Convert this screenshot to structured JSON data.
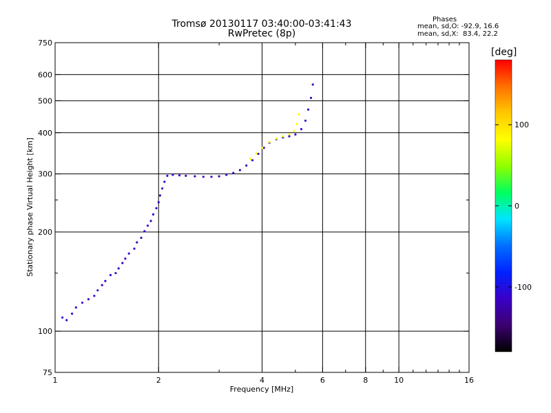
{
  "header": {
    "title_line1": "Tromsø 20130117 03:40:00-03:41:43",
    "title_line2": "RwPretec (8p)"
  },
  "phases": {
    "title": "Phases",
    "o_line": "mean, sd,O: -92.9, 16.6",
    "x_line": "mean, sd,X:  83.4, 22.2"
  },
  "colorbar": {
    "unit": "[deg]",
    "ticks": [
      "100",
      "0",
      "-100"
    ],
    "tick_values": [
      100,
      0,
      -100
    ],
    "range": [
      -180,
      180
    ],
    "stops": [
      "#000000",
      "#3c0070",
      "#3a00c8",
      "#0022ff",
      "#0070ff",
      "#00e5ff",
      "#00ff60",
      "#90ff00",
      "#ffff00",
      "#ffc800",
      "#ff7000",
      "#ff0000"
    ]
  },
  "chart_data": {
    "type": "scatter",
    "xlabel": "Frequency [MHz]",
    "ylabel": "Stationary phase Virtual Height [km]",
    "xscale": "log",
    "yscale": "log",
    "xlim": [
      1,
      16
    ],
    "ylim": [
      75,
      750
    ],
    "xticks": [
      1,
      2,
      4,
      6,
      8,
      10,
      16
    ],
    "yticks": [
      75,
      100,
      200,
      300,
      400,
      500,
      600,
      750
    ],
    "vgrid": [
      2,
      4,
      6,
      8,
      10
    ],
    "hgrid": [
      100,
      200,
      300,
      400,
      500,
      600
    ],
    "minor_xticks": [
      3,
      5,
      7,
      9,
      11,
      12,
      13,
      14,
      15
    ],
    "minor_yticks": [
      150,
      250
    ],
    "series": [
      {
        "points": [
          [
            1.05,
            110
          ],
          [
            1.08,
            108
          ],
          [
            1.12,
            113
          ],
          [
            1.15,
            118
          ],
          [
            1.2,
            122
          ],
          [
            1.25,
            125
          ],
          [
            1.3,
            128
          ],
          [
            1.33,
            133
          ],
          [
            1.37,
            138
          ],
          [
            1.4,
            142
          ],
          [
            1.45,
            148
          ],
          [
            1.5,
            150
          ],
          [
            1.53,
            155
          ],
          [
            1.57,
            161
          ],
          [
            1.6,
            166
          ],
          [
            1.64,
            172
          ],
          [
            1.7,
            178
          ],
          [
            1.73,
            186
          ],
          [
            1.78,
            192
          ],
          [
            1.82,
            201
          ],
          [
            1.86,
            209
          ],
          [
            1.9,
            216
          ],
          [
            1.93,
            226
          ],
          [
            1.97,
            236
          ],
          [
            2.0,
            246
          ],
          [
            2.02,
            258
          ],
          [
            2.05,
            271
          ],
          [
            2.08,
            284
          ],
          [
            2.12,
            296
          ],
          [
            2.2,
            298
          ],
          [
            2.3,
            297
          ],
          [
            2.4,
            296
          ],
          [
            2.55,
            295
          ],
          [
            2.7,
            294
          ],
          [
            2.85,
            294
          ],
          [
            3.0,
            295
          ],
          [
            3.15,
            298
          ],
          [
            3.3,
            302
          ],
          [
            3.45,
            308
          ],
          [
            3.6,
            318
          ],
          [
            3.75,
            330
          ],
          [
            3.9,
            345
          ],
          [
            4.05,
            360
          ],
          [
            4.2,
            373
          ],
          [
            4.4,
            382
          ],
          [
            4.6,
            387
          ],
          [
            4.8,
            390
          ],
          [
            5.0,
            395
          ],
          [
            5.2,
            410
          ],
          [
            5.35,
            435
          ],
          [
            5.45,
            470
          ],
          [
            5.55,
            510
          ],
          [
            5.62,
            560
          ]
        ],
        "phase": -100
      },
      {
        "points": [
          [
            3.7,
            333
          ],
          [
            3.85,
            346
          ],
          [
            4.0,
            360
          ],
          [
            4.2,
            375
          ],
          [
            4.4,
            384
          ],
          [
            4.6,
            390
          ],
          [
            4.8,
            396
          ],
          [
            4.95,
            405
          ],
          [
            5.05,
            425
          ],
          [
            5.12,
            455
          ]
        ],
        "phase": 95
      }
    ]
  }
}
